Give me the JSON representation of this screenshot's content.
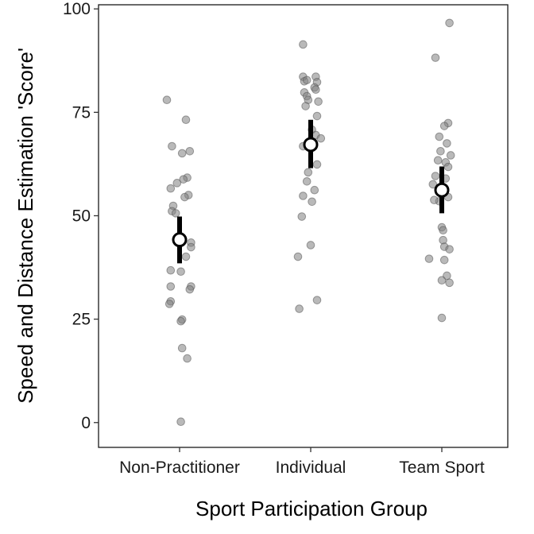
{
  "chart_data": {
    "type": "scatter",
    "xlabel": "Sport Participation Group",
    "ylabel": "Speed and Distance Estimation 'Score'",
    "categories": [
      "Non-Practitioner",
      "Individual",
      "Team Sport"
    ],
    "yticks": [
      "0",
      "25",
      "50",
      "75",
      "100"
    ],
    "ytick_values": [
      0,
      25,
      50,
      75,
      100
    ],
    "ylim": [
      -6,
      101
    ],
    "grid": false,
    "point_color": "#808080",
    "summary_color": "#000000",
    "groups": [
      {
        "category": "Non-Practitioner",
        "mean": 44.2,
        "ci": [
          38.5,
          49.8
        ],
        "points": [
          {
            "jitter": -0.1,
            "y": 78.0
          },
          {
            "jitter": 0.05,
            "y": 73.2
          },
          {
            "jitter": -0.06,
            "y": 66.8
          },
          {
            "jitter": 0.08,
            "y": 65.6
          },
          {
            "jitter": 0.02,
            "y": 65.1
          },
          {
            "jitter": 0.06,
            "y": 59.2
          },
          {
            "jitter": 0.03,
            "y": 58.8
          },
          {
            "jitter": -0.02,
            "y": 57.9
          },
          {
            "jitter": -0.07,
            "y": 56.6
          },
          {
            "jitter": 0.07,
            "y": 55.0
          },
          {
            "jitter": 0.04,
            "y": 54.5
          },
          {
            "jitter": -0.05,
            "y": 52.4
          },
          {
            "jitter": -0.06,
            "y": 51.1
          },
          {
            "jitter": -0.03,
            "y": 50.6
          },
          {
            "jitter": 0.09,
            "y": 43.5
          },
          {
            "jitter": 0.09,
            "y": 42.4
          },
          {
            "jitter": 0.05,
            "y": 40.1
          },
          {
            "jitter": -0.07,
            "y": 36.8
          },
          {
            "jitter": 0.01,
            "y": 36.5
          },
          {
            "jitter": -0.07,
            "y": 32.9
          },
          {
            "jitter": 0.09,
            "y": 32.9
          },
          {
            "jitter": 0.08,
            "y": 32.2
          },
          {
            "jitter": -0.07,
            "y": 29.3
          },
          {
            "jitter": -0.08,
            "y": 28.7
          },
          {
            "jitter": 0.02,
            "y": 24.9
          },
          {
            "jitter": 0.01,
            "y": 24.5
          },
          {
            "jitter": 0.02,
            "y": 18.0
          },
          {
            "jitter": 0.06,
            "y": 15.5
          },
          {
            "jitter": 0.01,
            "y": 0.2
          }
        ]
      },
      {
        "category": "Individual",
        "mean": 67.2,
        "ci": [
          61.5,
          73.2
        ],
        "points": [
          {
            "jitter": -0.06,
            "y": 91.4
          },
          {
            "jitter": -0.06,
            "y": 83.6
          },
          {
            "jitter": 0.04,
            "y": 83.6
          },
          {
            "jitter": -0.05,
            "y": 82.5
          },
          {
            "jitter": -0.03,
            "y": 82.8
          },
          {
            "jitter": 0.05,
            "y": 82.3
          },
          {
            "jitter": 0.03,
            "y": 81.0
          },
          {
            "jitter": 0.04,
            "y": 80.5
          },
          {
            "jitter": -0.05,
            "y": 79.8
          },
          {
            "jitter": -0.03,
            "y": 78.9
          },
          {
            "jitter": -0.02,
            "y": 78.0
          },
          {
            "jitter": 0.06,
            "y": 77.6
          },
          {
            "jitter": -0.04,
            "y": 76.5
          },
          {
            "jitter": 0.05,
            "y": 74.1
          },
          {
            "jitter": 0.01,
            "y": 70.8
          },
          {
            "jitter": 0.04,
            "y": 69.5
          },
          {
            "jitter": 0.08,
            "y": 68.7
          },
          {
            "jitter": -0.06,
            "y": 66.8
          },
          {
            "jitter": 0.05,
            "y": 62.4
          },
          {
            "jitter": -0.02,
            "y": 60.5
          },
          {
            "jitter": -0.03,
            "y": 58.3
          },
          {
            "jitter": 0.03,
            "y": 56.2
          },
          {
            "jitter": -0.06,
            "y": 54.8
          },
          {
            "jitter": 0.01,
            "y": 53.4
          },
          {
            "jitter": -0.07,
            "y": 49.8
          },
          {
            "jitter": 0.0,
            "y": 42.9
          },
          {
            "jitter": -0.1,
            "y": 40.1
          },
          {
            "jitter": 0.05,
            "y": 29.6
          },
          {
            "jitter": -0.09,
            "y": 27.5
          }
        ]
      },
      {
        "category": "Team Sport",
        "mean": 56.2,
        "ci": [
          50.6,
          61.9
        ],
        "points": [
          {
            "jitter": 0.06,
            "y": 96.6
          },
          {
            "jitter": -0.05,
            "y": 88.2
          },
          {
            "jitter": 0.05,
            "y": 72.4
          },
          {
            "jitter": 0.02,
            "y": 71.7
          },
          {
            "jitter": -0.02,
            "y": 69.1
          },
          {
            "jitter": 0.04,
            "y": 67.5
          },
          {
            "jitter": -0.01,
            "y": 65.6
          },
          {
            "jitter": 0.07,
            "y": 64.6
          },
          {
            "jitter": -0.03,
            "y": 63.4
          },
          {
            "jitter": 0.03,
            "y": 62.9
          },
          {
            "jitter": 0.05,
            "y": 61.8
          },
          {
            "jitter": -0.05,
            "y": 59.6
          },
          {
            "jitter": 0.03,
            "y": 59.0
          },
          {
            "jitter": -0.07,
            "y": 57.6
          },
          {
            "jitter": 0.05,
            "y": 54.5
          },
          {
            "jitter": -0.02,
            "y": 53.5
          },
          {
            "jitter": -0.06,
            "y": 53.8
          },
          {
            "jitter": 0.0,
            "y": 47.2
          },
          {
            "jitter": 0.01,
            "y": 46.5
          },
          {
            "jitter": 0.01,
            "y": 44.1
          },
          {
            "jitter": 0.02,
            "y": 42.5
          },
          {
            "jitter": 0.06,
            "y": 41.9
          },
          {
            "jitter": -0.1,
            "y": 39.6
          },
          {
            "jitter": 0.02,
            "y": 39.3
          },
          {
            "jitter": 0.04,
            "y": 35.5
          },
          {
            "jitter": 0.0,
            "y": 34.4
          },
          {
            "jitter": 0.06,
            "y": 33.8
          },
          {
            "jitter": 0.0,
            "y": 25.3
          }
        ]
      }
    ]
  }
}
